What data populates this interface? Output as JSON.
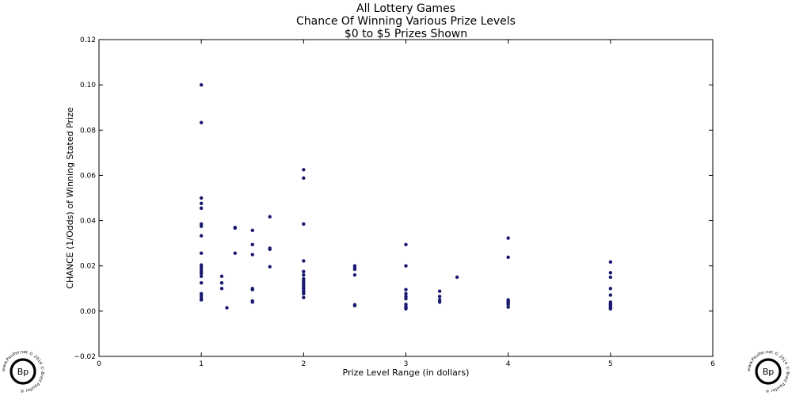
{
  "chart_data": {
    "type": "scatter",
    "title_lines": [
      "All Lottery Games",
      "Chance Of Winning Various Prize Levels",
      "$0 to $5 Prizes Shown"
    ],
    "xlabel": "Prize Level Range (in dollars)",
    "ylabel": "CHANCE (1/Odds) of Winning Stated Prize",
    "xlim": [
      0,
      6
    ],
    "ylim": [
      -0.02,
      0.12
    ],
    "xticks": [
      0,
      1,
      2,
      3,
      4,
      5,
      6
    ],
    "xtick_labels": [
      "0",
      "1",
      "2",
      "3",
      "4",
      "5",
      "6"
    ],
    "yticks": [
      -0.02,
      0,
      0.02,
      0.04,
      0.06,
      0.08,
      0.1,
      0.12
    ],
    "ytick_labels": [
      "−0.02",
      "0.00",
      "0.02",
      "0.04",
      "0.06",
      "0.08",
      "0.10",
      "0.12"
    ],
    "grid": false,
    "marker_color": "#191970",
    "points": [
      [
        1,
        0.1
      ],
      [
        1,
        0.0833
      ],
      [
        1,
        0.05
      ],
      [
        1,
        0.0476
      ],
      [
        1,
        0.0455
      ],
      [
        1,
        0.0385
      ],
      [
        1,
        0.0375
      ],
      [
        1,
        0.0333
      ],
      [
        1,
        0.0256
      ],
      [
        1,
        0.0204
      ],
      [
        1,
        0.0196
      ],
      [
        1,
        0.0185
      ],
      [
        1,
        0.0175
      ],
      [
        1,
        0.0167
      ],
      [
        1,
        0.0154
      ],
      [
        1,
        0.0125
      ],
      [
        1,
        0.0077
      ],
      [
        1,
        0.0067
      ],
      [
        1,
        0.0056
      ],
      [
        1,
        0.005
      ],
      [
        1.2,
        0.0154
      ],
      [
        1.2,
        0.0125
      ],
      [
        1.2,
        0.01
      ],
      [
        1.25,
        0.0015
      ],
      [
        1.33,
        0.037
      ],
      [
        1.33,
        0.0367
      ],
      [
        1.33,
        0.0256
      ],
      [
        1.5,
        0.0357
      ],
      [
        1.5,
        0.0294
      ],
      [
        1.5,
        0.025
      ],
      [
        1.5,
        0.01
      ],
      [
        1.5,
        0.0095
      ],
      [
        1.5,
        0.0045
      ],
      [
        1.5,
        0.004
      ],
      [
        1.67,
        0.0417
      ],
      [
        1.67,
        0.0278
      ],
      [
        1.67,
        0.0273
      ],
      [
        1.67,
        0.0196
      ],
      [
        2,
        0.0625
      ],
      [
        2,
        0.0588
      ],
      [
        2,
        0.0385
      ],
      [
        2,
        0.0222
      ],
      [
        2,
        0.0175
      ],
      [
        2,
        0.016
      ],
      [
        2,
        0.0143
      ],
      [
        2,
        0.0133
      ],
      [
        2,
        0.0125
      ],
      [
        2,
        0.0115
      ],
      [
        2,
        0.0105
      ],
      [
        2,
        0.01
      ],
      [
        2,
        0.0091
      ],
      [
        2,
        0.0083
      ],
      [
        2,
        0.0077
      ],
      [
        2,
        0.006
      ],
      [
        2.5,
        0.02
      ],
      [
        2.5,
        0.0192
      ],
      [
        2.5,
        0.0185
      ],
      [
        2.5,
        0.016
      ],
      [
        2.5,
        0.0028
      ],
      [
        2.5,
        0.0024
      ],
      [
        3,
        0.0294
      ],
      [
        3,
        0.02
      ],
      [
        3,
        0.0095
      ],
      [
        3,
        0.0077
      ],
      [
        3,
        0.0065
      ],
      [
        3,
        0.0055
      ],
      [
        3,
        0.003
      ],
      [
        3,
        0.002
      ],
      [
        3,
        0.0015
      ],
      [
        3,
        0.001
      ],
      [
        3.33,
        0.0088
      ],
      [
        3.33,
        0.0065
      ],
      [
        3.33,
        0.005
      ],
      [
        3.33,
        0.004
      ],
      [
        3.5,
        0.015
      ],
      [
        4,
        0.0323
      ],
      [
        4,
        0.0238
      ],
      [
        4,
        0.005
      ],
      [
        4,
        0.0045
      ],
      [
        4,
        0.004
      ],
      [
        4,
        0.0035
      ],
      [
        4,
        0.003
      ],
      [
        4,
        0.0018
      ],
      [
        5,
        0.0217
      ],
      [
        5,
        0.017
      ],
      [
        5,
        0.015
      ],
      [
        5,
        0.01
      ],
      [
        5,
        0.0071
      ],
      [
        5,
        0.004
      ],
      [
        5,
        0.0033
      ],
      [
        5,
        0.0028
      ],
      [
        5,
        0.0022
      ],
      [
        5,
        0.0018
      ],
      [
        5,
        0.0013
      ],
      [
        5,
        0.001
      ]
    ]
  },
  "watermark": {
    "monogram": "Bp",
    "ring_text": "www.Paulfer.net © 2014 © Brett Paulfer ©"
  }
}
